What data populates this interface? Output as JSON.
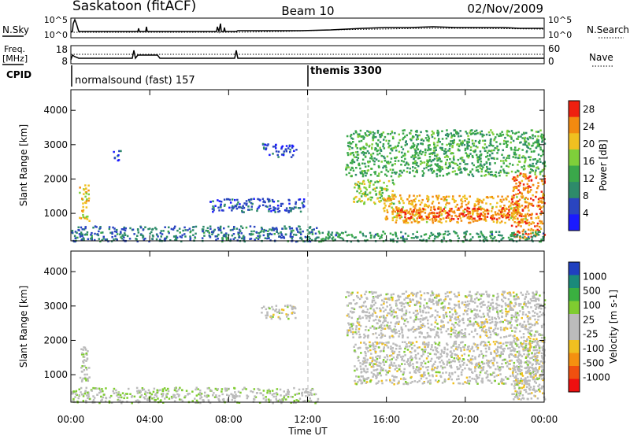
{
  "header": {
    "station": "Saskatoon (fitACF)",
    "beam": "Beam 10",
    "date": "02/Nov/2009"
  },
  "noise_panel": {
    "left_label": "N.Sky",
    "right_label": "N.Search",
    "left_ticks": [
      "10^5",
      "10^0"
    ],
    "right_ticks": [
      "10^5",
      "10^0"
    ]
  },
  "freq_panel": {
    "left_label": "Freq.",
    "left_unit": "[MHz]",
    "left_ticks": [
      "18",
      "8"
    ],
    "right_label": "Nave",
    "right_ticks": [
      "60",
      "0"
    ]
  },
  "cpid_panel": {
    "label": "CPID",
    "modes": [
      {
        "name": "normalsound (fast) 157"
      },
      {
        "name": "themis 3300"
      }
    ]
  },
  "colors": {
    "power_scale": [
      "#1a1aff",
      "#2a45c0",
      "#2e8b6a",
      "#3aa84a",
      "#7fcf3a",
      "#f0c020",
      "#f28a10",
      "#ee2010"
    ],
    "velocity_scale": [
      "#2040c0",
      "#1a8a7a",
      "#3ab040",
      "#7fcc30",
      "#bbbbbb",
      "#bbbbbb",
      "#f0c020",
      "#f59010",
      "#f05010",
      "#ee1010"
    ]
  },
  "chart_data": [
    {
      "type": "heatmap",
      "title": "",
      "quantity": "Power",
      "xlabel": "",
      "ylabel": "Slant Range [km]",
      "xlim": [
        0,
        24
      ],
      "ylim": [
        200,
        4600
      ],
      "x_ticks": [],
      "y_ticks": [
        "1000",
        "2000",
        "3000",
        "4000"
      ],
      "colorbar": {
        "label": "Power [dB]",
        "ticks": [
          "4",
          "8",
          "12",
          "16",
          "20",
          "24",
          "28"
        ],
        "range": [
          0,
          30
        ]
      },
      "regions": [
        {
          "t0": 0.4,
          "t1": 0.9,
          "r0": 800,
          "r1": 1900,
          "value": 20
        },
        {
          "t0": 2.1,
          "t1": 2.5,
          "r0": 2550,
          "r1": 2850,
          "value": 6
        },
        {
          "t0": 9.6,
          "t1": 11.4,
          "r0": 2650,
          "r1": 3050,
          "value": 5
        },
        {
          "t0": 7.0,
          "t1": 11.8,
          "r0": 1050,
          "r1": 1450,
          "value": 6
        },
        {
          "t0": 0.0,
          "t1": 12.5,
          "r0": 200,
          "r1": 650,
          "value": 8
        },
        {
          "t0": 13.9,
          "t1": 24.0,
          "r0": 2100,
          "r1": 3450,
          "value": 13
        },
        {
          "t0": 14.3,
          "t1": 16.4,
          "r0": 1300,
          "r1": 2000,
          "value": 17
        },
        {
          "t0": 15.8,
          "t1": 23.1,
          "r0": 750,
          "r1": 1550,
          "value": 22
        },
        {
          "t0": 16.5,
          "t1": 22.2,
          "r0": 850,
          "r1": 1200,
          "value": 27
        },
        {
          "t0": 22.3,
          "t1": 24.0,
          "r0": 300,
          "r1": 2200,
          "value": 25
        },
        {
          "t0": 12.5,
          "t1": 24.0,
          "r0": 200,
          "r1": 500,
          "value": 11
        }
      ]
    },
    {
      "type": "heatmap",
      "title": "",
      "quantity": "Velocity",
      "xlabel": "Time UT",
      "ylabel": "Slant Range [km]",
      "xlim": [
        0,
        24
      ],
      "ylim": [
        200,
        4600
      ],
      "x_ticks": [
        "00:00",
        "04:00",
        "08:00",
        "12:00",
        "16:00",
        "20:00",
        "00:00"
      ],
      "y_ticks": [
        "1000",
        "2000",
        "3000",
        "4000"
      ],
      "colorbar": {
        "label": "Velocity [m s-1]",
        "ticks": [
          "1000",
          "500",
          "100",
          "25",
          "-25",
          "-100",
          "-500",
          "-1000"
        ],
        "range": [
          -1000,
          1000
        ]
      },
      "regions": [
        {
          "t0": 0.4,
          "t1": 0.9,
          "r0": 800,
          "r1": 1900,
          "value": 60
        },
        {
          "t0": 9.6,
          "t1": 11.4,
          "r0": 2650,
          "r1": 3050,
          "value": 0
        },
        {
          "t0": 0.0,
          "t1": 12.5,
          "r0": 200,
          "r1": 650,
          "value": 100
        },
        {
          "t0": 13.9,
          "t1": 24.0,
          "r0": 2100,
          "r1": 3450,
          "value": 0
        },
        {
          "t0": 14.3,
          "t1": 24.0,
          "r0": 750,
          "r1": 2000,
          "value": 5
        },
        {
          "t0": 22.3,
          "t1": 24.0,
          "r0": 300,
          "r1": 2200,
          "value": -10
        }
      ]
    }
  ]
}
